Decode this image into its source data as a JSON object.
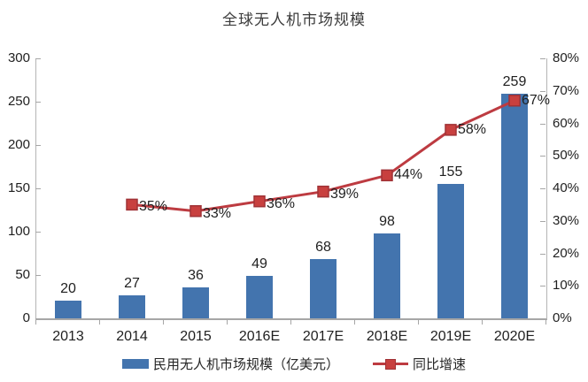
{
  "title": "全球无人机市场规模",
  "colors": {
    "bar": "#4374ae",
    "line": "#bd3b41",
    "marker_fill": "#c8403f",
    "marker_stroke": "#a03236",
    "axis": "#a6a6a6",
    "text": "#1f1f1f"
  },
  "chart_data": {
    "type": "bar+line combo",
    "title": "全球无人机市场规模",
    "categories": [
      "2013",
      "2014",
      "2015",
      "2016E",
      "2017E",
      "2018E",
      "2019E",
      "2020E"
    ],
    "series": [
      {
        "name": "民用无人机市场规模（亿美元）",
        "type": "bar",
        "axis": "left",
        "values": [
          20,
          27,
          36,
          49,
          68,
          98,
          155,
          259
        ]
      },
      {
        "name": "同比增速",
        "type": "line",
        "axis": "right",
        "value_suffix": "%",
        "values": [
          null,
          35,
          33,
          36,
          39,
          44,
          58,
          67
        ]
      }
    ],
    "left_axis": {
      "min": 0,
      "max": 300,
      "step": 50,
      "tick_labels": [
        "0",
        "50",
        "100",
        "150",
        "200",
        "250",
        "300"
      ]
    },
    "right_axis": {
      "min": 0,
      "max": 80,
      "step": 10,
      "tick_labels": [
        "0%",
        "10%",
        "20%",
        "30%",
        "40%",
        "50%",
        "60%",
        "70%",
        "80%"
      ]
    },
    "grid": "off",
    "legend_position": "bottom"
  },
  "legend": {
    "bar_label": "民用无人机市场规模（亿美元）",
    "line_label": "同比增速"
  }
}
